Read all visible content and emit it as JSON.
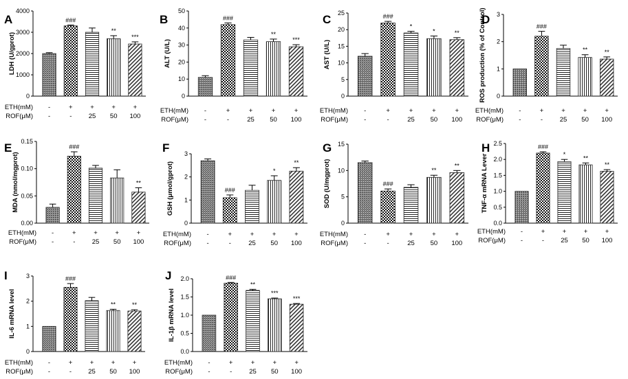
{
  "chart_data": [
    {
      "type": "bar",
      "panel": "A",
      "ylabel": "LDH (U/gprot)",
      "ylim": [
        0,
        4000
      ],
      "yticks": [
        "0",
        "1000",
        "2000",
        "3000",
        "4000"
      ],
      "values": [
        2000,
        3300,
        3000,
        2700,
        2450
      ],
      "errors": [
        40,
        40,
        200,
        140,
        100
      ],
      "significance": [
        "",
        "###",
        "",
        "**",
        "***"
      ],
      "eth": [
        "-",
        "+",
        "+",
        "+",
        "+"
      ],
      "rof": [
        "-",
        "-",
        "25",
        "50",
        "100"
      ]
    },
    {
      "type": "bar",
      "panel": "B",
      "ylabel": "ALT (U/L)",
      "ylim": [
        0,
        50
      ],
      "yticks": [
        "0",
        "10",
        "20",
        "30",
        "40",
        "50"
      ],
      "values": [
        11,
        42,
        33,
        32,
        29
      ],
      "errors": [
        1,
        1,
        1.5,
        1.5,
        1.2
      ],
      "significance": [
        "",
        "###",
        "",
        "**",
        "***"
      ],
      "eth": [
        "-",
        "+",
        "+",
        "+",
        "+"
      ],
      "rof": [
        "-",
        "-",
        "25",
        "50",
        "100"
      ]
    },
    {
      "type": "bar",
      "panel": "C",
      "ylabel": "AST (U/L)",
      "ylim": [
        0,
        25
      ],
      "yticks": [
        "0",
        "5",
        "10",
        "15",
        "20",
        "25"
      ],
      "values": [
        12,
        22,
        19,
        17.3,
        17
      ],
      "errors": [
        0.8,
        0.5,
        0.5,
        0.8,
        0.6
      ],
      "significance": [
        "",
        "###",
        "*",
        "*",
        "**"
      ],
      "eth": [
        "-",
        "+",
        "+",
        "+",
        "+"
      ],
      "rof": [
        "-",
        "-",
        "25",
        "50",
        "100"
      ]
    },
    {
      "type": "bar",
      "panel": "D",
      "ylabel": "ROS production (% of Control)",
      "ylim": [
        0,
        3
      ],
      "yticks": [
        "0",
        "1",
        "2",
        "3"
      ],
      "values": [
        1.0,
        2.2,
        1.75,
        1.42,
        1.36
      ],
      "errors": [
        0,
        0.18,
        0.12,
        0.1,
        0.08
      ],
      "significance": [
        "",
        "###",
        "",
        "**",
        "**"
      ],
      "eth": [
        "-",
        "+",
        "+",
        "+",
        "+"
      ],
      "rof": [
        "-",
        "-",
        "25",
        "50",
        "100"
      ]
    },
    {
      "type": "bar",
      "panel": "E",
      "ylabel": "MDA (nmol/mgprot)",
      "ylim": [
        0,
        0.15
      ],
      "yticks": [
        "0.00",
        "0.05",
        "0.10",
        "0.15"
      ],
      "values": [
        0.029,
        0.123,
        0.101,
        0.083,
        0.057
      ],
      "errors": [
        0.006,
        0.008,
        0.005,
        0.015,
        0.008
      ],
      "significance": [
        "",
        "###",
        "",
        "",
        "**"
      ],
      "eth": [
        "-",
        "+",
        "+",
        "+",
        "+"
      ],
      "rof": [
        "-",
        "-",
        "25",
        "50",
        "100"
      ]
    },
    {
      "type": "bar",
      "panel": "F",
      "ylabel": "GSH (μmol/gprot)",
      "ylim": [
        0,
        3
      ],
      "yticks": [
        "0",
        "1",
        "2",
        "3"
      ],
      "values": [
        2.7,
        1.1,
        1.42,
        1.85,
        2.25
      ],
      "errors": [
        0.08,
        0.12,
        0.22,
        0.2,
        0.15
      ],
      "significance": [
        "",
        "###",
        "",
        "*",
        "**"
      ],
      "eth": [
        "-",
        "+",
        "+",
        "+",
        "+"
      ],
      "rof": [
        "-",
        "-",
        "25",
        "50",
        "100"
      ]
    },
    {
      "type": "bar",
      "panel": "G",
      "ylabel": "SOD (U/mgprot)",
      "ylim": [
        0,
        15
      ],
      "yticks": [
        "0",
        "5",
        "10",
        "15"
      ],
      "values": [
        11.5,
        6.1,
        6.8,
        8.7,
        9.6
      ],
      "errors": [
        0.3,
        0.4,
        0.5,
        0.4,
        0.4
      ],
      "significance": [
        "",
        "###",
        "",
        "**",
        "**"
      ],
      "eth": [
        "-",
        "+",
        "+",
        "+",
        "+"
      ],
      "rof": [
        "-",
        "-",
        "25",
        "50",
        "100"
      ]
    },
    {
      "type": "bar",
      "panel": "H",
      "ylabel": "TNF-α mRNA Lever",
      "ylim": [
        0,
        2.5
      ],
      "yticks": [
        "0.0",
        "0.5",
        "1.0",
        "1.5",
        "2.0",
        "2.5"
      ],
      "values": [
        1.0,
        2.2,
        1.93,
        1.83,
        1.63
      ],
      "errors": [
        0,
        0.04,
        0.07,
        0.06,
        0.05
      ],
      "significance": [
        "",
        "###",
        "*",
        "**",
        "**"
      ],
      "eth": [
        "-",
        "+",
        "+",
        "+",
        "+"
      ],
      "rof": [
        "-",
        "-",
        "25",
        "50",
        "100"
      ]
    },
    {
      "type": "bar",
      "panel": "I",
      "ylabel": "IL-6 mRNA level",
      "ylim": [
        0,
        3
      ],
      "yticks": [
        "0",
        "1",
        "2",
        "3"
      ],
      "values": [
        1.0,
        2.55,
        2.02,
        1.63,
        1.61
      ],
      "errors": [
        0,
        0.15,
        0.13,
        0.05,
        0.05
      ],
      "significance": [
        "",
        "###",
        "",
        "**",
        "**"
      ],
      "eth": [
        "-",
        "+",
        "+",
        "+",
        "+"
      ],
      "rof": [
        "-",
        "-",
        "25",
        "50",
        "100"
      ]
    },
    {
      "type": "bar",
      "panel": "J",
      "ylabel": "IL-1β mRNA level",
      "ylim": [
        0,
        2.0
      ],
      "yticks": [
        "0.0",
        "0.5",
        "1.0",
        "1.5",
        "2.0"
      ],
      "values": [
        1.0,
        1.88,
        1.68,
        1.45,
        1.3
      ],
      "errors": [
        0,
        0.02,
        0.03,
        0.02,
        0.02
      ],
      "significance": [
        "",
        "###",
        "**",
        "***",
        "***"
      ],
      "eth": [
        "-",
        "+",
        "+",
        "+",
        "+"
      ],
      "rof": [
        "-",
        "-",
        "25",
        "50",
        "100"
      ]
    }
  ],
  "factor_labels": {
    "eth": "ETH(mM)",
    "rof": "ROF(μM)"
  }
}
